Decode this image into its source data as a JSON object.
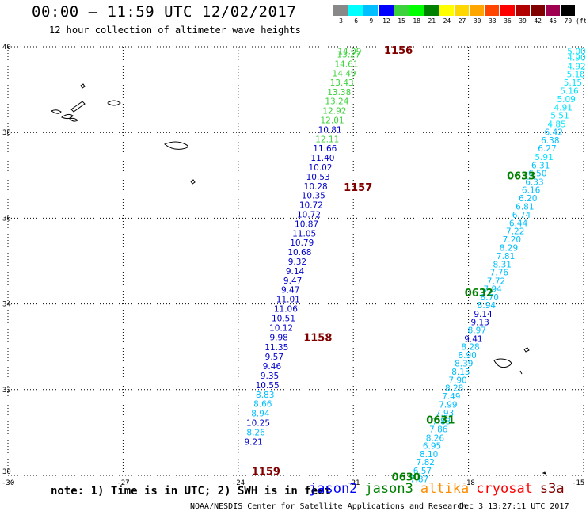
{
  "header": {
    "title": "00:00 – 11:59 UTC 12/02/2017",
    "subtitle": "12 hour collection of altimeter wave heights"
  },
  "colorbar": {
    "unit": "(ft)",
    "labels": [
      "3",
      "6",
      "9",
      "12",
      "15",
      "18",
      "21",
      "24",
      "27",
      "30",
      "33",
      "36",
      "39",
      "42",
      "45",
      "70"
    ],
    "colors": [
      "#888888",
      "#00ffff",
      "#00bfff",
      "#0000ff",
      "#3cd23c",
      "#00ff00",
      "#008000",
      "#ffff00",
      "#ffd700",
      "#ffa500",
      "#ff4500",
      "#ff0000",
      "#b00000",
      "#800000",
      "#a00050",
      "#000000"
    ]
  },
  "footer": {
    "note": "note: 1) Time is in UTC; 2) SWH is in feet",
    "satellites": [
      {
        "name": "jason2",
        "color": "#0000ff"
      },
      {
        "name": "jason3",
        "color": "#008000"
      },
      {
        "name": "altika",
        "color": "#ff8c00"
      },
      {
        "name": "cryosat",
        "color": "#ff0000"
      },
      {
        "name": "s3a",
        "color": "#800000"
      }
    ],
    "credit": "NOAA/NESDIS Center for Satellite Applications and Research",
    "timestamp": "Dec  3 13:27:11 UTC 2017"
  },
  "chart_data": {
    "type": "scatter",
    "title": "00:00 – 11:59 UTC 12/02/2017",
    "subtitle": "12 hour collection of altimeter wave heights",
    "xlim": [
      -30,
      -15
    ],
    "ylim": [
      30,
      40
    ],
    "x_ticks": [
      "-30",
      "-27",
      "-24",
      "-21",
      "-18",
      "-15"
    ],
    "y_ticks": [
      "30",
      "32",
      "34",
      "36",
      "38",
      "40"
    ],
    "grid": true,
    "legend": "bottom",
    "series": [
      {
        "name": "jason3",
        "color_scale": "wave height colorbar",
        "points": [
          {
            "lon": -21.1,
            "lat": 39.9,
            "swh": 14.09
          },
          {
            "lon": -21.12,
            "lat": 39.82,
            "swh": 13.27
          },
          {
            "lon": -21.18,
            "lat": 39.6,
            "swh": 14.61
          },
          {
            "lon": -21.24,
            "lat": 39.38,
            "swh": 14.49
          },
          {
            "lon": -21.3,
            "lat": 39.17,
            "swh": 13.43
          },
          {
            "lon": -21.37,
            "lat": 38.95,
            "swh": 13.38
          },
          {
            "lon": -21.43,
            "lat": 38.73,
            "swh": 13.24
          },
          {
            "lon": -21.49,
            "lat": 38.51,
            "swh": 12.92
          },
          {
            "lon": -21.55,
            "lat": 38.29,
            "swh": 12.01
          },
          {
            "lon": -21.61,
            "lat": 38.07,
            "swh": 10.81
          },
          {
            "lon": -21.68,
            "lat": 37.85,
            "swh": 12.11
          },
          {
            "lon": -21.74,
            "lat": 37.63,
            "swh": 11.66
          },
          {
            "lon": -21.8,
            "lat": 37.41,
            "swh": 11.4
          },
          {
            "lon": -21.86,
            "lat": 37.19,
            "swh": 10.02
          },
          {
            "lon": -21.92,
            "lat": 36.97,
            "swh": 10.53
          },
          {
            "lon": -21.98,
            "lat": 36.75,
            "swh": 10.28
          },
          {
            "lon": -22.04,
            "lat": 36.53,
            "swh": 10.35
          },
          {
            "lon": -22.1,
            "lat": 36.31,
            "swh": 10.72
          },
          {
            "lon": -22.16,
            "lat": 36.09,
            "swh": 10.72
          },
          {
            "lon": -22.22,
            "lat": 35.87,
            "swh": 10.87
          },
          {
            "lon": -22.28,
            "lat": 35.65,
            "swh": 11.05
          },
          {
            "lon": -22.34,
            "lat": 35.43,
            "swh": 10.79
          },
          {
            "lon": -22.4,
            "lat": 35.21,
            "swh": 10.68
          },
          {
            "lon": -22.46,
            "lat": 34.99,
            "swh": 9.32
          },
          {
            "lon": -22.52,
            "lat": 34.77,
            "swh": 9.14
          },
          {
            "lon": -22.58,
            "lat": 34.55,
            "swh": 9.47
          },
          {
            "lon": -22.64,
            "lat": 34.33,
            "swh": 9.47
          },
          {
            "lon": -22.7,
            "lat": 34.11,
            "swh": 11.01
          },
          {
            "lon": -22.76,
            "lat": 33.89,
            "swh": 11.06
          },
          {
            "lon": -22.82,
            "lat": 33.67,
            "swh": 10.51
          },
          {
            "lon": -22.88,
            "lat": 33.45,
            "swh": 10.12
          },
          {
            "lon": -22.94,
            "lat": 33.23,
            "swh": 9.98
          },
          {
            "lon": -23.0,
            "lat": 32.99,
            "swh": 11.35
          },
          {
            "lon": -23.06,
            "lat": 32.77,
            "swh": 9.57
          },
          {
            "lon": -23.12,
            "lat": 32.55,
            "swh": 9.46
          },
          {
            "lon": -23.18,
            "lat": 32.33,
            "swh": 9.35
          },
          {
            "lon": -23.24,
            "lat": 32.11,
            "swh": 10.55
          },
          {
            "lon": -23.3,
            "lat": 31.89,
            "swh": 8.83
          },
          {
            "lon": -23.36,
            "lat": 31.67,
            "swh": 8.66
          },
          {
            "lon": -23.42,
            "lat": 31.45,
            "swh": 8.94
          },
          {
            "lon": -23.48,
            "lat": 31.23,
            "swh": 10.25
          },
          {
            "lon": -23.54,
            "lat": 31.01,
            "swh": 8.26
          },
          {
            "lon": -23.6,
            "lat": 30.79,
            "swh": 9.21
          }
        ]
      },
      {
        "name": "jason2",
        "color_scale": "wave height colorbar",
        "points": [
          {
            "lon": -15.0,
            "lat": 39.9,
            "swh": 5.0
          },
          {
            "lon": -15.05,
            "lat": 39.75,
            "swh": 4.9
          },
          {
            "lon": -15.12,
            "lat": 39.55,
            "swh": 4.92
          },
          {
            "lon": -15.2,
            "lat": 39.36,
            "swh": 5.18
          },
          {
            "lon": -15.28,
            "lat": 39.17,
            "swh": 5.15
          },
          {
            "lon": -15.37,
            "lat": 38.97,
            "swh": 5.16
          },
          {
            "lon": -15.45,
            "lat": 38.78,
            "swh": 5.09
          },
          {
            "lon": -15.53,
            "lat": 38.59,
            "swh": 4.91
          },
          {
            "lon": -15.62,
            "lat": 38.4,
            "swh": 5.51
          },
          {
            "lon": -15.7,
            "lat": 38.2,
            "swh": 4.85
          },
          {
            "lon": -15.78,
            "lat": 38.01,
            "swh": 6.42
          },
          {
            "lon": -15.87,
            "lat": 37.82,
            "swh": 6.38
          },
          {
            "lon": -15.95,
            "lat": 37.63,
            "swh": 6.27
          },
          {
            "lon": -16.03,
            "lat": 37.43,
            "swh": 5.91
          },
          {
            "lon": -16.12,
            "lat": 37.24,
            "swh": 6.31
          },
          {
            "lon": -16.2,
            "lat": 37.05,
            "swh": 6.5
          },
          {
            "lon": -16.28,
            "lat": 36.85,
            "swh": 6.33
          },
          {
            "lon": -16.37,
            "lat": 36.66,
            "swh": 6.16
          },
          {
            "lon": -16.45,
            "lat": 36.47,
            "swh": 6.2
          },
          {
            "lon": -16.53,
            "lat": 36.28,
            "swh": 6.81
          },
          {
            "lon": -16.62,
            "lat": 36.08,
            "swh": 6.74
          },
          {
            "lon": -16.7,
            "lat": 35.89,
            "swh": 6.44
          },
          {
            "lon": -16.78,
            "lat": 35.7,
            "swh": 7.22
          },
          {
            "lon": -16.87,
            "lat": 35.51,
            "swh": 7.2
          },
          {
            "lon": -16.95,
            "lat": 35.31,
            "swh": 8.29
          },
          {
            "lon": -17.03,
            "lat": 35.12,
            "swh": 7.81
          },
          {
            "lon": -17.12,
            "lat": 34.93,
            "swh": 8.31
          },
          {
            "lon": -17.2,
            "lat": 34.74,
            "swh": 7.76
          },
          {
            "lon": -17.28,
            "lat": 34.54,
            "swh": 7.72
          },
          {
            "lon": -17.37,
            "lat": 34.35,
            "swh": 7.94
          },
          {
            "lon": -17.45,
            "lat": 34.16,
            "swh": 8.7
          },
          {
            "lon": -17.53,
            "lat": 33.97,
            "swh": 8.94
          },
          {
            "lon": -17.62,
            "lat": 33.77,
            "swh": 9.14
          },
          {
            "lon": -17.7,
            "lat": 33.58,
            "swh": 9.13
          },
          {
            "lon": -17.78,
            "lat": 33.39,
            "swh": 8.97
          },
          {
            "lon": -17.87,
            "lat": 33.19,
            "swh": 9.41
          },
          {
            "lon": -17.95,
            "lat": 33.0,
            "swh": 8.28
          },
          {
            "lon": -18.03,
            "lat": 32.81,
            "swh": 8.9
          },
          {
            "lon": -18.12,
            "lat": 32.62,
            "swh": 8.39
          },
          {
            "lon": -18.2,
            "lat": 32.42,
            "swh": 8.15
          },
          {
            "lon": -18.28,
            "lat": 32.23,
            "swh": 7.9
          },
          {
            "lon": -18.37,
            "lat": 32.04,
            "swh": 8.28
          },
          {
            "lon": -18.45,
            "lat": 31.85,
            "swh": 7.49
          },
          {
            "lon": -18.53,
            "lat": 31.65,
            "swh": 7.99
          },
          {
            "lon": -18.62,
            "lat": 31.46,
            "swh": 7.93
          },
          {
            "lon": -18.7,
            "lat": 31.27,
            "swh": 7.83
          },
          {
            "lon": -18.78,
            "lat": 31.08,
            "swh": 7.86
          },
          {
            "lon": -18.87,
            "lat": 30.88,
            "swh": 8.26
          },
          {
            "lon": -18.95,
            "lat": 30.69,
            "swh": 6.95
          },
          {
            "lon": -19.03,
            "lat": 30.5,
            "swh": 8.1
          },
          {
            "lon": -19.12,
            "lat": 30.31,
            "swh": 7.82
          },
          {
            "lon": -19.2,
            "lat": 30.11,
            "swh": 6.57
          },
          {
            "lon": -19.28,
            "lat": 29.92,
            "swh": 7.87
          }
        ]
      }
    ],
    "time_labels": [
      {
        "text": "1156",
        "lon": -20.2,
        "lat": 39.93,
        "color": "#800000"
      },
      {
        "text": "1157",
        "lon": -21.25,
        "lat": 36.73,
        "color": "#800000"
      },
      {
        "text": "1158",
        "lon": -22.3,
        "lat": 33.23,
        "color": "#800000"
      },
      {
        "text": "1159",
        "lon": -23.65,
        "lat": 30.1,
        "color": "#800000"
      },
      {
        "text": "0633",
        "lon": -17.0,
        "lat": 37.0,
        "color": "#008000"
      },
      {
        "text": "0632",
        "lon": -18.1,
        "lat": 34.27,
        "color": "#008000"
      },
      {
        "text": "0631",
        "lon": -19.1,
        "lat": 31.3,
        "color": "#008000"
      },
      {
        "text": "0630",
        "lon": -20.0,
        "lat": 29.97,
        "color": "#008000"
      }
    ]
  }
}
